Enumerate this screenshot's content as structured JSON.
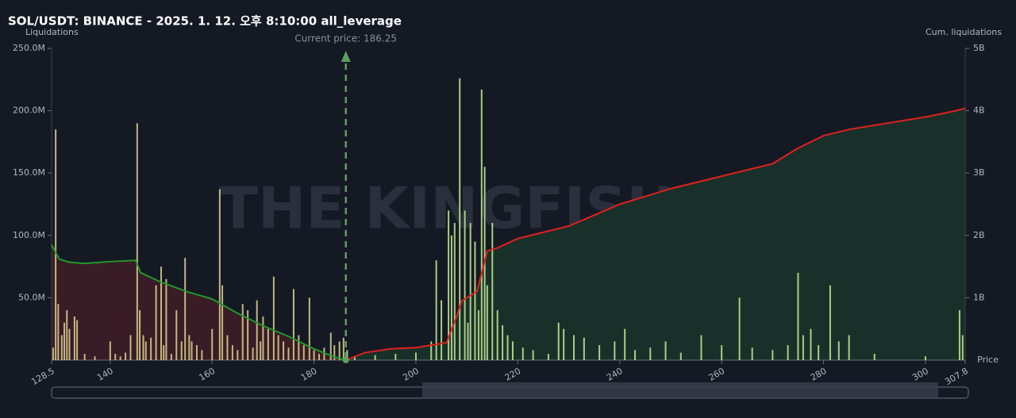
{
  "chart_data": {
    "type": "bar",
    "title": "SOL/USDT: BINANCE - 2025. 1. 12. 오후 8:10:00 all_leverage",
    "y_label": "Liquidations",
    "y2_label": "Cum. liquidations",
    "x_label": "Price",
    "watermark": "THE KINGFISHER",
    "annotation": {
      "label": "Current price: 186.25",
      "x": 186.25
    },
    "xlim": [
      128.5,
      307.8
    ],
    "xticks": [
      128.5,
      140,
      160,
      180,
      200,
      220,
      240,
      260,
      280,
      300,
      307.8
    ],
    "ylim": [
      0,
      250000000
    ],
    "yticks": [
      {
        "value": 50000000,
        "label": "50.0M"
      },
      {
        "value": 100000000,
        "label": "100.0M"
      },
      {
        "value": 150000000,
        "label": "150.0M"
      },
      {
        "value": 200000000,
        "label": "200.0M"
      },
      {
        "value": 250000000,
        "label": "250.0M"
      }
    ],
    "y2lim": [
      0,
      5000000000
    ],
    "y2ticks": [
      {
        "value": 1000000000,
        "label": "1B"
      },
      {
        "value": 2000000000,
        "label": "2B"
      },
      {
        "value": 3000000000,
        "label": "3B"
      },
      {
        "value": 4000000000,
        "label": "4B"
      },
      {
        "value": 5000000000,
        "label": "5B"
      }
    ],
    "bars": [
      {
        "color": "#d4c98c",
        "x": [
          128.8,
          129.3,
          129.8,
          130.5,
          131,
          131.5,
          132,
          133,
          133.5,
          135,
          137,
          140,
          141,
          142,
          143,
          144,
          145.3,
          145.8,
          146.5,
          147,
          148,
          149,
          150,
          150.5,
          151,
          152,
          153,
          154,
          154.7,
          155.5,
          156,
          157,
          158,
          160,
          161.5,
          162,
          163,
          164,
          165,
          166,
          167,
          168,
          168.8,
          169.5,
          170,
          171,
          172.1,
          173,
          174,
          175,
          176,
          177,
          178,
          179.1,
          180,
          181,
          182,
          183.3,
          184,
          185,
          185.8
        ],
        "values": [
          10000000,
          185000000,
          45000000,
          20000000,
          30000000,
          40000000,
          25000000,
          35000000,
          32000000,
          5000000,
          3000000,
          15000000,
          5000000,
          3000000,
          6000000,
          20000000,
          190000000,
          40000000,
          20000000,
          15000000,
          18000000,
          60000000,
          75000000,
          12000000,
          65000000,
          5000000,
          40000000,
          15000000,
          82000000,
          20000000,
          15000000,
          12000000,
          8000000,
          25000000,
          137000000,
          60000000,
          20000000,
          12000000,
          8000000,
          45000000,
          40000000,
          10000000,
          48000000,
          15000000,
          35000000,
          25000000,
          67000000,
          20000000,
          15000000,
          10000000,
          57000000,
          20000000,
          12000000,
          50000000,
          8000000,
          5000000,
          10000000,
          22000000,
          12000000,
          15000000,
          18000000
        ]
      },
      {
        "color": "#b8e08e",
        "x": [
          186.5,
          188,
          192,
          196,
          200,
          203,
          204,
          205,
          206.4,
          207,
          207.6,
          208.6,
          209.6,
          210.2,
          210.7,
          211.6,
          212.3,
          212.9,
          213.5,
          214,
          215,
          216,
          217,
          218,
          219,
          221,
          223,
          226,
          228,
          229,
          231,
          233,
          236,
          239,
          241,
          243,
          246,
          249,
          252,
          256,
          260,
          263.5,
          266,
          270,
          273,
          275,
          276,
          277.5,
          279,
          281.3,
          283,
          285,
          290,
          300,
          306.7,
          307.3
        ],
        "values": [
          8000000,
          3000000,
          4000000,
          5000000,
          6000000,
          15000000,
          80000000,
          48000000,
          120000000,
          100000000,
          110000000,
          226000000,
          120000000,
          30000000,
          110000000,
          95000000,
          40000000,
          217000000,
          155000000,
          60000000,
          110000000,
          40000000,
          28000000,
          20000000,
          15000000,
          10000000,
          8000000,
          5000000,
          30000000,
          25000000,
          20000000,
          18000000,
          12000000,
          15000000,
          25000000,
          8000000,
          10000000,
          15000000,
          6000000,
          20000000,
          12000000,
          50000000,
          10000000,
          8000000,
          12000000,
          70000000,
          20000000,
          25000000,
          12000000,
          60000000,
          15000000,
          20000000,
          5000000,
          3000000,
          40000000,
          20000000
        ]
      }
    ],
    "series": [
      {
        "color": "#1f9a2a",
        "fill": "#3a1c26",
        "axis": "y2",
        "x": [
          128.5,
          130,
          132,
          135,
          140,
          145,
          146,
          150,
          155,
          160,
          165,
          170,
          175,
          180,
          184,
          186.25
        ],
        "values": [
          1850000000,
          1620000000,
          1570000000,
          1550000000,
          1580000000,
          1600000000,
          1400000000,
          1250000000,
          1100000000,
          980000000,
          750000000,
          550000000,
          380000000,
          180000000,
          50000000,
          0
        ]
      },
      {
        "color": "#e0201e",
        "fill": "#19302a",
        "axis": "y2",
        "x": [
          186.25,
          190,
          195,
          200,
          206,
          208,
          209,
          212,
          214,
          216,
          220,
          230,
          240,
          250,
          260,
          270,
          275,
          280,
          285,
          300,
          306,
          307.8
        ],
        "values": [
          0,
          120000000,
          180000000,
          200000000,
          280000000,
          700000000,
          950000000,
          1100000000,
          1750000000,
          1800000000,
          1950000000,
          2150000000,
          2500000000,
          2750000000,
          2950000000,
          3150000000,
          3400000000,
          3600000000,
          3700000000,
          3900000000,
          4000000000,
          4040000000
        ]
      }
    ]
  }
}
